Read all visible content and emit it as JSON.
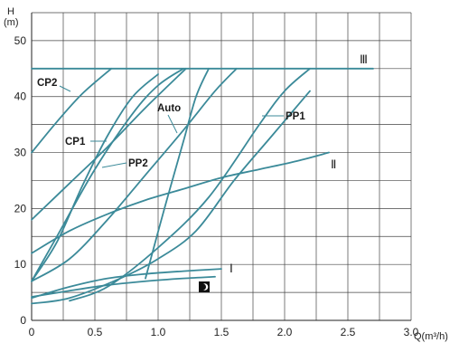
{
  "chart_data": {
    "type": "line",
    "title": "",
    "xlabel": "Q(m³/h)",
    "ylabel": "H",
    "ylabel_unit": "(m)",
    "xlim": [
      0,
      3.0
    ],
    "ylim": [
      0,
      55
    ],
    "x_ticks": [
      "0",
      "0.5",
      "1.0",
      "1.5",
      "2.0",
      "2.5",
      "3.0"
    ],
    "y_ticks": [
      "0",
      "10",
      "20",
      "30",
      "40",
      "50"
    ],
    "grid": true,
    "line_color": "#3b8a99",
    "series": [
      {
        "name": "Ⅲ",
        "x": [
          0,
          2.7
        ],
        "y": [
          45,
          45
        ]
      },
      {
        "name": "CP2",
        "x": [
          0,
          0.2,
          0.4,
          0.63
        ],
        "y": [
          30,
          35.5,
          40.5,
          45
        ]
      },
      {
        "name": "CP1",
        "x": [
          0,
          0.3,
          0.6,
          0.9,
          1.22
        ],
        "y": [
          18,
          24.5,
          31,
          38,
          45
        ]
      },
      {
        "name": "PP2",
        "x": [
          0,
          0.2,
          0.5,
          0.8,
          1.0,
          1.2
        ],
        "y": [
          7,
          15,
          27,
          37,
          42,
          45
        ]
      },
      {
        "name": "Auto",
        "x": [
          0,
          0.3,
          0.6,
          0.9,
          1.2,
          1.45,
          1.62
        ],
        "y": [
          7,
          11,
          18,
          26,
          34,
          41,
          45
        ]
      },
      {
        "name": "PP1",
        "x": [
          0.3,
          0.6,
          1.0,
          1.4,
          1.8,
          2.0,
          2.2
        ],
        "y": [
          3.5,
          6,
          13,
          22,
          35,
          41,
          45
        ]
      },
      {
        "name": "Ⅱ",
        "x": [
          0,
          0.3,
          0.6,
          0.9,
          1.2,
          1.5,
          1.8,
          2.1,
          2.35
        ],
        "y": [
          12,
          16,
          19,
          21.5,
          23.5,
          25.5,
          27,
          28.5,
          30
        ]
      },
      {
        "name": "",
        "x": [
          0.9,
          1.05,
          1.2,
          1.3,
          1.4
        ],
        "y": [
          7.5,
          20,
          32,
          40,
          45
        ]
      },
      {
        "name": "",
        "x": [
          0,
          0.2,
          0.4,
          0.6,
          0.8,
          1.0
        ],
        "y": [
          7,
          14,
          24,
          33,
          40,
          44
        ]
      },
      {
        "name": "",
        "x": [
          0,
          0.3,
          0.7,
          1.0,
          1.3,
          1.6,
          1.9,
          2.2
        ],
        "y": [
          3,
          4,
          7.5,
          11,
          16,
          25,
          33,
          41
        ]
      },
      {
        "name": "Ⅰ",
        "x": [
          0,
          0.3,
          0.6,
          0.9,
          1.2,
          1.5
        ],
        "y": [
          4,
          6,
          7.5,
          8.3,
          8.8,
          9.2
        ]
      },
      {
        "name": "night-mode",
        "x": [
          0,
          0.3,
          0.6,
          0.9,
          1.2,
          1.45
        ],
        "y": [
          4.2,
          5.3,
          6.3,
          7,
          7.5,
          7.8
        ]
      }
    ],
    "annotations": {
      "CP2": "CP2",
      "CP1": "CP1",
      "PP2": "PP2",
      "Auto": "Auto",
      "PP1": "PP1",
      "III": "Ⅲ",
      "II": "Ⅱ",
      "I": "Ⅰ"
    },
    "night_mode_icon": "moon-icon"
  }
}
